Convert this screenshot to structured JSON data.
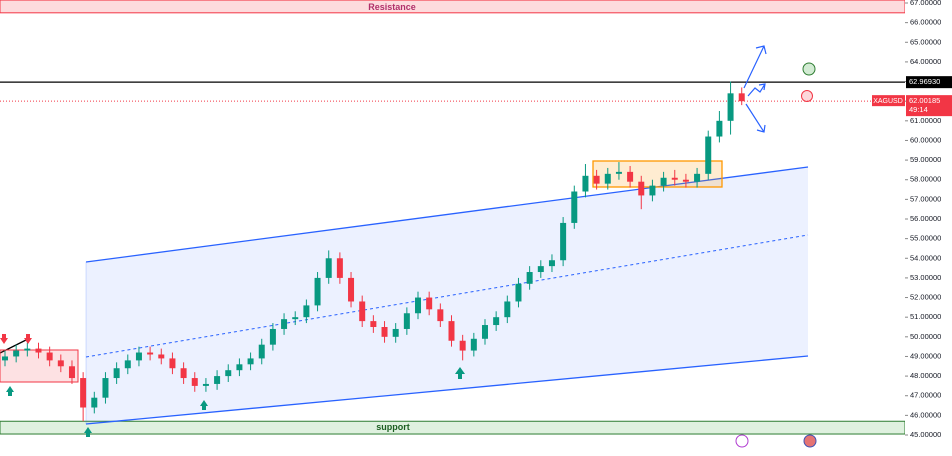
{
  "chart_data": {
    "type": "candlestick",
    "symbol": "XAGUSD",
    "countdown": "49:14",
    "resistance_label": "Resistance",
    "support_label": "support",
    "up_color": "#089981",
    "down_color": "#f23645",
    "xlim": [
      0,
      80
    ],
    "ylim": [
      45,
      67
    ],
    "yticks": [
      {
        "value": 45,
        "label": "45.00000"
      },
      {
        "value": 46,
        "label": "46.00000"
      },
      {
        "value": 47,
        "label": "47.00000"
      },
      {
        "value": 48,
        "label": "48.00000"
      },
      {
        "value": 49,
        "label": "49.00000"
      },
      {
        "value": 50,
        "label": "50.00000"
      },
      {
        "value": 51,
        "label": "51.00000"
      },
      {
        "value": 52,
        "label": "52.00000"
      },
      {
        "value": 53,
        "label": "53.00000"
      },
      {
        "value": 54,
        "label": "54.00000"
      },
      {
        "value": 55,
        "label": "55.00000"
      },
      {
        "value": 56,
        "label": "56.00000"
      },
      {
        "value": 57,
        "label": "57.00000"
      },
      {
        "value": 58,
        "label": "58.00000"
      },
      {
        "value": 59,
        "label": "59.00000"
      },
      {
        "value": 60,
        "label": "60.00000"
      },
      {
        "value": 61,
        "label": "61.00000"
      },
      {
        "value": 62,
        "label": "62.00000"
      },
      {
        "value": 63,
        "label": "63.00000"
      },
      {
        "value": 64,
        "label": "64.00000"
      },
      {
        "value": 65,
        "label": "65.00000"
      },
      {
        "value": 66,
        "label": "66.00000"
      },
      {
        "value": 67,
        "label": "67.00000"
      }
    ],
    "high_line": {
      "value": 62.9693,
      "label": "62.96930"
    },
    "last_price": {
      "value": 62.00185,
      "label": "62.00185"
    },
    "resistance_zone": [
      66.5,
      67.15
    ],
    "support_zone": [
      45.05,
      45.7
    ],
    "open": [
      48.8,
      49.0,
      49.3,
      49.4,
      49.2,
      48.8,
      48.5,
      47.9,
      46.4,
      46.9,
      47.9,
      48.4,
      48.8,
      49.2,
      49.1,
      48.9,
      48.4,
      47.9,
      47.5,
      47.6,
      48.0,
      48.3,
      48.6,
      48.9,
      49.6,
      50.4,
      50.9,
      51.0,
      51.6,
      53.0,
      54.0,
      53.0,
      51.8,
      50.8,
      50.5,
      50.0,
      50.4,
      51.2,
      52.0,
      51.4,
      50.8,
      49.8,
      49.3,
      49.9,
      50.6,
      51.0,
      51.8,
      52.7,
      53.3,
      53.6,
      53.9,
      55.8,
      57.4,
      58.2,
      57.8,
      58.3,
      58.4,
      57.9,
      57.2,
      57.7,
      58.1,
      58.0,
      57.9,
      58.3,
      60.2,
      61.0,
      62.4
    ],
    "high": [
      49.3,
      49.6,
      49.7,
      49.7,
      49.5,
      49.1,
      48.8,
      48.2,
      47.2,
      48.2,
      48.7,
      49.1,
      49.5,
      49.5,
      49.4,
      49.2,
      48.7,
      48.2,
      47.9,
      48.3,
      48.6,
      48.9,
      49.2,
      49.9,
      50.7,
      51.2,
      51.3,
      51.9,
      53.3,
      54.4,
      54.3,
      53.3,
      52.1,
      51.1,
      50.8,
      50.7,
      51.5,
      52.3,
      52.3,
      51.7,
      51.1,
      50.1,
      50.2,
      50.9,
      51.3,
      52.1,
      53.0,
      53.6,
      53.9,
      54.2,
      56.1,
      57.7,
      58.8,
      58.5,
      58.6,
      58.9,
      58.7,
      58.2,
      58.0,
      58.4,
      58.5,
      58.3,
      58.6,
      60.5,
      61.5,
      63.0,
      62.7
    ],
    "low": [
      48.5,
      48.7,
      49.0,
      48.9,
      48.5,
      48.2,
      47.6,
      45.7,
      46.1,
      46.6,
      47.6,
      48.1,
      48.5,
      48.8,
      48.6,
      48.1,
      47.6,
      47.2,
      47.2,
      47.3,
      47.7,
      48.0,
      48.3,
      48.6,
      49.3,
      50.1,
      50.6,
      50.7,
      51.3,
      52.7,
      52.7,
      51.5,
      50.5,
      50.2,
      49.7,
      49.7,
      50.1,
      50.9,
      51.1,
      50.5,
      49.5,
      48.8,
      49.0,
      49.6,
      50.3,
      50.7,
      51.5,
      52.4,
      53.0,
      53.3,
      53.6,
      55.5,
      57.1,
      57.5,
      57.5,
      58.0,
      57.6,
      56.5,
      56.9,
      57.4,
      57.7,
      57.6,
      57.6,
      58.0,
      59.9,
      60.3,
      61.8
    ],
    "close": [
      49.0,
      49.3,
      49.4,
      49.2,
      48.8,
      48.5,
      47.9,
      46.4,
      46.9,
      47.9,
      48.4,
      48.8,
      49.2,
      49.1,
      48.9,
      48.4,
      47.9,
      47.5,
      47.6,
      48.0,
      48.3,
      48.6,
      48.9,
      49.6,
      50.4,
      50.9,
      51.0,
      51.6,
      53.0,
      54.0,
      53.0,
      51.8,
      50.8,
      50.5,
      50.0,
      50.4,
      51.2,
      52.0,
      51.4,
      50.8,
      49.8,
      49.3,
      49.9,
      50.6,
      51.0,
      51.8,
      52.7,
      53.3,
      53.6,
      53.9,
      55.8,
      57.4,
      58.2,
      57.8,
      58.3,
      58.4,
      57.9,
      57.2,
      57.7,
      58.1,
      58.0,
      57.9,
      58.3,
      60.2,
      61.0,
      62.4,
      62.0
    ]
  }
}
